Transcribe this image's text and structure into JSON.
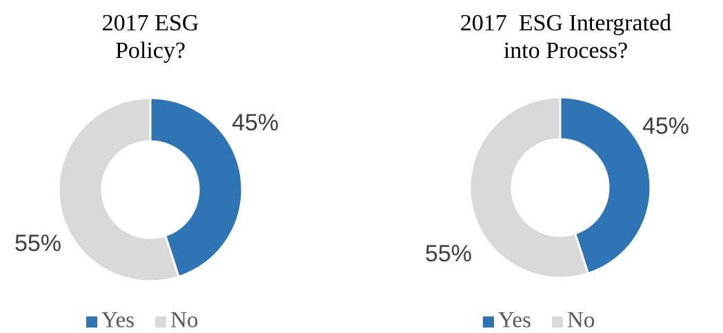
{
  "chart_data": [
    {
      "type": "donut",
      "title": "2017 ESG Policy?",
      "categories": [
        "Yes",
        "No"
      ],
      "values": [
        45,
        55
      ],
      "value_labels": [
        "45%",
        "55%"
      ],
      "colors": [
        "#2e75b6",
        "#d9d9d9"
      ],
      "legend": "bottom"
    },
    {
      "type": "donut",
      "title": "2017  ESG Intergrated into Process?",
      "categories": [
        "Yes",
        "No"
      ],
      "values": [
        45,
        55
      ],
      "value_labels": [
        "45%",
        "55%"
      ],
      "colors": [
        "#2e75b6",
        "#d9d9d9"
      ],
      "legend": "bottom"
    }
  ]
}
